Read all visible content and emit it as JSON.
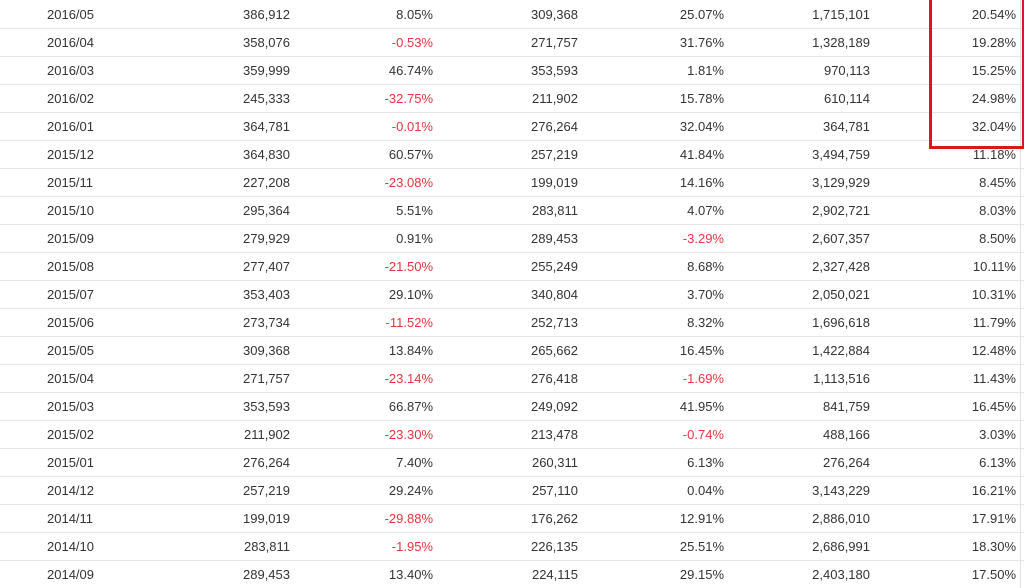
{
  "table": {
    "rows": [
      [
        "2016/05",
        "386,912",
        "8.05%",
        "309,368",
        "25.07%",
        "1,715,101",
        "20.54%"
      ],
      [
        "2016/04",
        "358,076",
        "-0.53%",
        "271,757",
        "31.76%",
        "1,328,189",
        "19.28%"
      ],
      [
        "2016/03",
        "359,999",
        "46.74%",
        "353,593",
        "1.81%",
        "970,113",
        "15.25%"
      ],
      [
        "2016/02",
        "245,333",
        "-32.75%",
        "211,902",
        "15.78%",
        "610,114",
        "24.98%"
      ],
      [
        "2016/01",
        "364,781",
        "-0.01%",
        "276,264",
        "32.04%",
        "364,781",
        "32.04%"
      ],
      [
        "2015/12",
        "364,830",
        "60.57%",
        "257,219",
        "41.84%",
        "3,494,759",
        "11.18%"
      ],
      [
        "2015/11",
        "227,208",
        "-23.08%",
        "199,019",
        "14.16%",
        "3,129,929",
        "8.45%"
      ],
      [
        "2015/10",
        "295,364",
        "5.51%",
        "283,811",
        "4.07%",
        "2,902,721",
        "8.03%"
      ],
      [
        "2015/09",
        "279,929",
        "0.91%",
        "289,453",
        "-3.29%",
        "2,607,357",
        "8.50%"
      ],
      [
        "2015/08",
        "277,407",
        "-21.50%",
        "255,249",
        "8.68%",
        "2,327,428",
        "10.11%"
      ],
      [
        "2015/07",
        "353,403",
        "29.10%",
        "340,804",
        "3.70%",
        "2,050,021",
        "10.31%"
      ],
      [
        "2015/06",
        "273,734",
        "-11.52%",
        "252,713",
        "8.32%",
        "1,696,618",
        "11.79%"
      ],
      [
        "2015/05",
        "309,368",
        "13.84%",
        "265,662",
        "16.45%",
        "1,422,884",
        "12.48%"
      ],
      [
        "2015/04",
        "271,757",
        "-23.14%",
        "276,418",
        "-1.69%",
        "1,113,516",
        "11.43%"
      ],
      [
        "2015/03",
        "353,593",
        "66.87%",
        "249,092",
        "41.95%",
        "841,759",
        "16.45%"
      ],
      [
        "2015/02",
        "211,902",
        "-23.30%",
        "213,478",
        "-0.74%",
        "488,166",
        "3.03%"
      ],
      [
        "2015/01",
        "276,264",
        "7.40%",
        "260,311",
        "6.13%",
        "276,264",
        "6.13%"
      ],
      [
        "2014/12",
        "257,219",
        "29.24%",
        "257,110",
        "0.04%",
        "3,143,229",
        "16.21%"
      ],
      [
        "2014/11",
        "199,019",
        "-29.88%",
        "176,262",
        "12.91%",
        "2,886,010",
        "17.91%"
      ],
      [
        "2014/10",
        "283,811",
        "-1.95%",
        "226,135",
        "25.51%",
        "2,686,991",
        "18.30%"
      ],
      [
        "2014/09",
        "289,453",
        "13.40%",
        "224,115",
        "29.15%",
        "2,403,180",
        "17.50%"
      ]
    ]
  }
}
